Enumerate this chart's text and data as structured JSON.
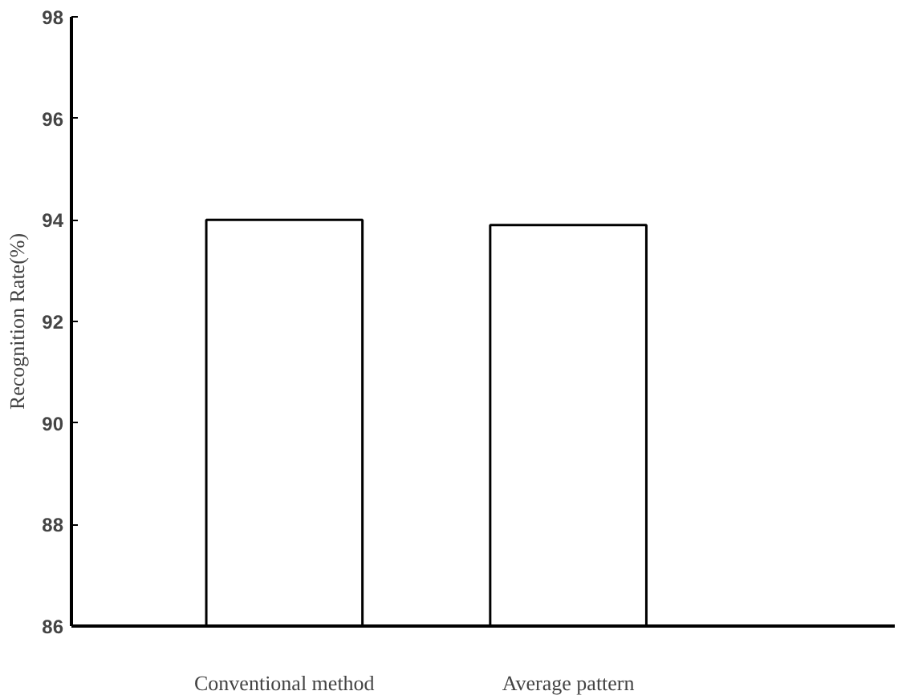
{
  "chart_data": {
    "type": "bar",
    "ylabel": "Recognition Rate(%)",
    "categories": [
      "Conventional method",
      "Average pattern"
    ],
    "values": [
      94.0,
      93.9
    ],
    "color": "#ffffff",
    "ylim": [
      86,
      98
    ],
    "yticks": [
      86,
      88,
      90,
      92,
      94,
      96,
      98
    ],
    "grid": false
  }
}
